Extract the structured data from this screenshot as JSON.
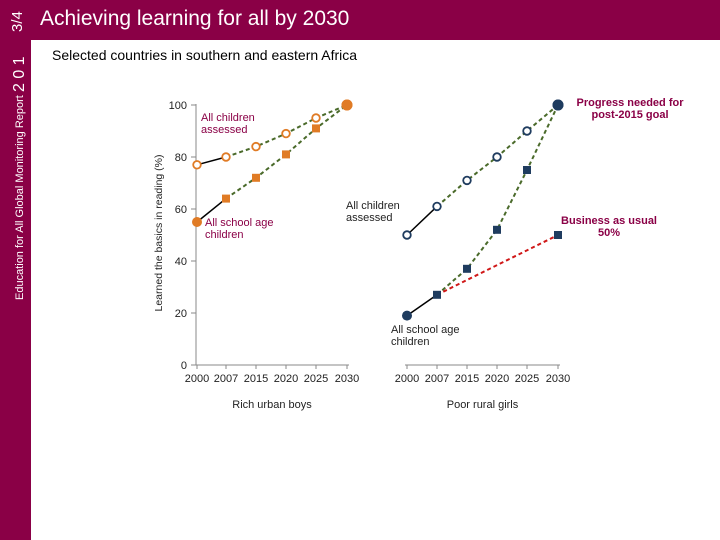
{
  "header": {
    "title": "Achieving learning for all by 2030",
    "page_badge": "3/4",
    "year_logo": "2 0 1",
    "series_vertical": "Education for All Global Monitoring Report"
  },
  "subtitle": "Selected countries in southern and eastern Africa",
  "colors": {
    "brand": "#8a0046",
    "rich_school": "#e07b25",
    "poor_school": "#1f3c5f",
    "projection_line": "#4a6a2a",
    "business_as_usual": "#d01818"
  },
  "chart_data": {
    "type": "line",
    "ylabel": "Learned the basics in reading (%)",
    "ylim": [
      0,
      100
    ],
    "yticks": [
      0,
      20,
      40,
      60,
      80,
      100
    ],
    "x": [
      "2000",
      "2007",
      "2015",
      "2020",
      "2025",
      "2030"
    ],
    "panels": [
      {
        "label": "Rich urban boys",
        "series": [
          {
            "name": "All children assessed",
            "values": [
              77,
              80,
              84,
              89,
              95,
              100
            ]
          },
          {
            "name": "All school age children",
            "values": [
              55,
              64,
              72,
              81,
              91,
              100
            ]
          }
        ]
      },
      {
        "label": "Poor rural girls",
        "series": [
          {
            "name": "All children assessed",
            "values": [
              50,
              61,
              71,
              80,
              90,
              100
            ]
          },
          {
            "name": "All school age children",
            "values": [
              19,
              27,
              37,
              52,
              75,
              100
            ]
          },
          {
            "name": "Business as usual 50%",
            "values": [
              null,
              27,
              null,
              null,
              null,
              50
            ]
          }
        ]
      }
    ],
    "annotations": {
      "rich_assessed": "All children assessed",
      "rich_school_age": "All school age children",
      "poor_assessed": "All children assessed",
      "poor_school_age": "All school age children",
      "progress_needed": "Progress needed for post-2015 goal",
      "business_as_usual": "Business as usual 50%"
    }
  }
}
